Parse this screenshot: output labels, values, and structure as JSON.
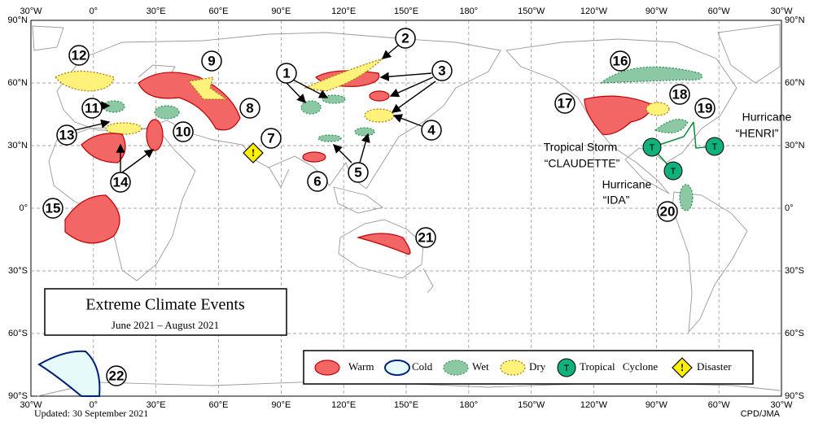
{
  "map": {
    "lon_labels": [
      "30°W",
      "0°",
      "30°E",
      "60°E",
      "90°E",
      "120°E",
      "150°E",
      "180°",
      "150°W",
      "120°W",
      "90°W",
      "60°W",
      "30°W"
    ],
    "lat_labels": [
      "90°N",
      "60°N",
      "30°N",
      "0°",
      "30°S",
      "60°S",
      "90°S"
    ],
    "events": [
      "1",
      "2",
      "3",
      "4",
      "5",
      "6",
      "7",
      "8",
      "9",
      "10",
      "11",
      "12",
      "13",
      "14",
      "15",
      "16",
      "17",
      "18",
      "19",
      "20",
      "21",
      "22"
    ],
    "storms": [
      {
        "type": "Tropical Storm",
        "name": "“CLAUDETTE”"
      },
      {
        "type": "Hurricane",
        "name": "“IDA”"
      },
      {
        "type": "Hurricane",
        "name": "“HENRI”"
      }
    ],
    "cyclone_symbol": "T",
    "disaster_symbol": "!",
    "title": "Extreme Climate Events",
    "period": "June 2021 – August 2021",
    "legend": [
      "Warm",
      "Cold",
      "Wet",
      "Dry",
      "Tropical Cyclone",
      "Disaster"
    ],
    "updated": "Updated: 30 September 2021",
    "credit": "CPD/JMA"
  }
}
